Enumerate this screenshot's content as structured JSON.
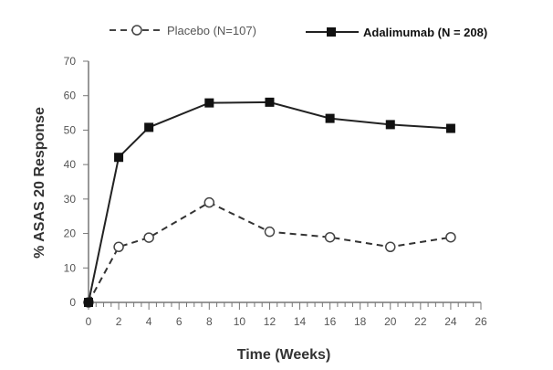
{
  "chart_data": {
    "type": "line",
    "title": "",
    "xlabel": "Time (Weeks)",
    "ylabel": "% ASAS 20 Response",
    "xlim": [
      0,
      26
    ],
    "ylim": [
      0,
      70
    ],
    "xticks": [
      "0",
      "2",
      "4",
      "6",
      "8",
      "10",
      "12",
      "14",
      "16",
      "18",
      "20",
      "22",
      "24",
      "26"
    ],
    "yticks": [
      "0",
      "10",
      "20",
      "30",
      "40",
      "50",
      "60",
      "70"
    ],
    "grid": false,
    "legend_position": "top",
    "x": [
      0,
      2,
      4,
      8,
      12,
      16,
      20,
      24
    ],
    "series": [
      {
        "name": "Placebo (N=107)",
        "style": "dashed",
        "marker": "open-circle",
        "color": "#333333",
        "values": [
          0,
          16.1,
          18.8,
          29.0,
          20.5,
          18.9,
          16.1,
          18.9
        ]
      },
      {
        "name": "Adalimumab (N = 208)",
        "style": "solid",
        "marker": "filled-square",
        "color": "#222222",
        "values": [
          0,
          42.1,
          50.8,
          57.9,
          58.1,
          53.4,
          51.6,
          50.5
        ]
      }
    ]
  }
}
